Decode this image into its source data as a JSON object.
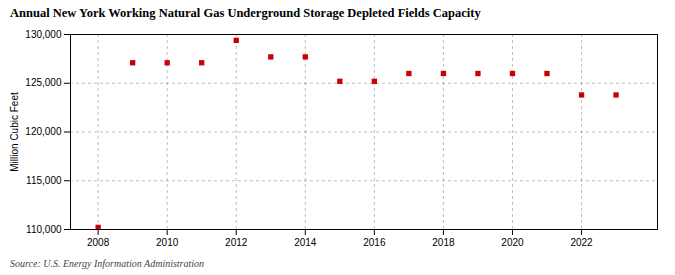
{
  "chart_data": {
    "type": "scatter",
    "title": "Annual New York Working Natural Gas Underground Storage Depleted Fields Capacity",
    "ylabel": "Million Cubic Feet",
    "annotations": [
      "Source: U.S. Energy Information Administration"
    ],
    "x": [
      2008,
      2009,
      2010,
      2011,
      2012,
      2013,
      2014,
      2015,
      2016,
      2017,
      2018,
      2019,
      2020,
      2021,
      2022,
      2023
    ],
    "values": [
      110219,
      127100,
      127100,
      127100,
      129400,
      127700,
      127700,
      125200,
      125200,
      126000,
      126000,
      126000,
      126000,
      126000,
      123800,
      123800
    ],
    "color": "#cc0000",
    "marker": "square",
    "grid": true,
    "xlim": [
      2007.2,
      2024.2
    ],
    "xticks": [
      2008,
      2010,
      2012,
      2014,
      2016,
      2018,
      2020,
      2022
    ],
    "ylim": [
      110000,
      130000
    ],
    "yticks": [
      {
        "value": 110000,
        "label": "110,000"
      },
      {
        "value": 115000,
        "label": "115,000"
      },
      {
        "value": 120000,
        "label": "120,000"
      },
      {
        "value": 125000,
        "label": "125,000"
      },
      {
        "value": 130000,
        "label": "130,000"
      }
    ]
  }
}
